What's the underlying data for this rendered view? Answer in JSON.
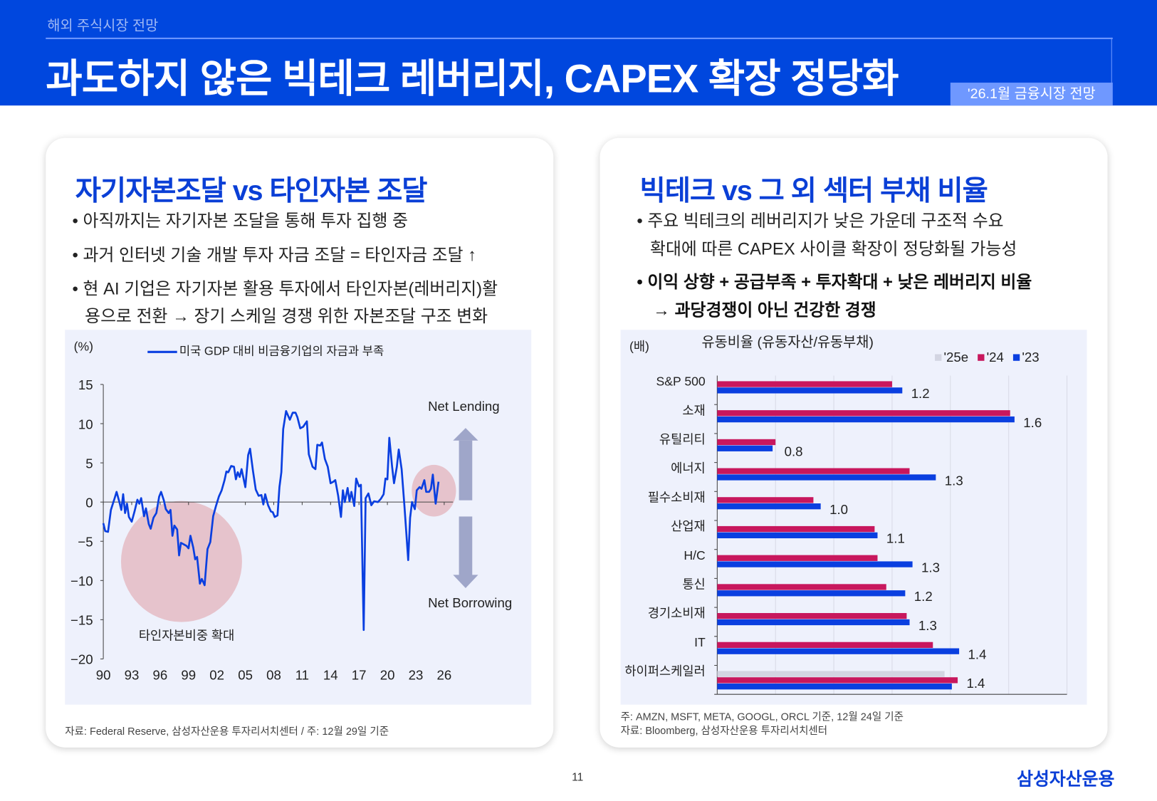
{
  "header": {
    "section": "해외 주식시장 전망",
    "title": "과도하지 않은 빅테크 레버리지, CAPEX 확장 정당화",
    "badge": "'26.1월 금융시장 전망"
  },
  "left": {
    "title": "자기자본조달 vs 타인자본 조달",
    "bullets": [
      "• 아직까지는 자기자본 조달을 통해 투자 집행 중",
      "• 과거 인터넷 기술 개발 투자 자금 조달 = 타인자금 조달 ↑",
      "• 현 AI 기업은 자기자본 활용 투자에서 타인자본(레버리지)활",
      "용으로 전환 → 장기 스케일 경쟁 위한 자본조달 구조 변화"
    ],
    "source": "자료: Federal Reserve, 삼성자산운용 투자리서치센터 / 주: 12월 29일 기준"
  },
  "right": {
    "title": "빅테크 vs 그 외 섹터 부채 비율",
    "bullets": [
      "• 주요 빅테크의 레버리지가 낮은 가운데 구조적 수요",
      "확대에 따른 CAPEX 사이클 확장이 정당화될 가능성",
      "• 이익 상향 + 공급부족 + 투자확대 + 낮은 레버리지 비율",
      "→ 과당경쟁이 아닌 건강한 경쟁"
    ],
    "note": "주: AMZN, MSFT, META, GOOGL, ORCL 기준, 12월 24일 기준",
    "source": "자료: Bloomberg, 삼성자산운용 투자리서치센터"
  },
  "footer": {
    "page": "11",
    "logo": "삼성자산운용"
  },
  "chart_data": [
    {
      "type": "line",
      "unit": "(%)",
      "legend": "미국 GDP 대비 비금융기업의 자금과 부족",
      "ylim": [
        -20,
        15
      ],
      "yticks": [
        15,
        10,
        5,
        0,
        -5,
        -10,
        -15,
        -20
      ],
      "xticks": [
        "90",
        "93",
        "96",
        "99",
        "02",
        "05",
        "08",
        "11",
        "14",
        "17",
        "20",
        "23",
        "26"
      ],
      "xlim": [
        1990,
        2026
      ],
      "annotations": {
        "net_lending": "Net Lending",
        "net_borrowing": "Net Borrowing",
        "circle_label": "타인자본비중 확대"
      },
      "color": "#0a3fe0",
      "points": [
        [
          1990.0,
          -2.7
        ],
        [
          1990.2,
          -3.7
        ],
        [
          1990.5,
          -3.8
        ],
        [
          1990.8,
          -1
        ],
        [
          1991.2,
          0.5
        ],
        [
          1991.4,
          1.3
        ],
        [
          1991.7,
          0
        ],
        [
          1991.9,
          -1
        ],
        [
          1992.1,
          1
        ],
        [
          1992.3,
          -1.4
        ],
        [
          1992.5,
          -0.2
        ],
        [
          1992.7,
          -1.9
        ],
        [
          1993.0,
          -2.5
        ],
        [
          1993.3,
          -1.2
        ],
        [
          1993.6,
          0.3
        ],
        [
          1993.8,
          -0.2
        ],
        [
          1994.0,
          0.5
        ],
        [
          1994.3,
          -1.8
        ],
        [
          1994.5,
          -0.8
        ],
        [
          1994.8,
          -2.8
        ],
        [
          1995.0,
          -3.4
        ],
        [
          1995.3,
          -2
        ],
        [
          1995.6,
          -1.4
        ],
        [
          1995.9,
          0.7
        ],
        [
          1996.1,
          1.3
        ],
        [
          1996.4,
          0.2
        ],
        [
          1996.6,
          -0.9
        ],
        [
          1996.9,
          -1.4
        ],
        [
          1997.1,
          -1.0
        ],
        [
          1997.3,
          -4.3
        ],
        [
          1997.5,
          -3
        ],
        [
          1997.8,
          -3.5
        ],
        [
          1998.0,
          -6.8
        ],
        [
          1998.2,
          -5.2
        ],
        [
          1998.5,
          -5.4
        ],
        [
          1998.8,
          -5.6
        ],
        [
          1999.0,
          -5.9
        ],
        [
          1999.2,
          -4.3
        ],
        [
          1999.5,
          -5.8
        ],
        [
          1999.7,
          -7.3
        ],
        [
          1999.9,
          -7.0
        ],
        [
          2000.2,
          -10.4
        ],
        [
          2000.4,
          -9.8
        ],
        [
          2000.7,
          -10.6
        ],
        [
          2001.0,
          -6.0
        ],
        [
          2001.3,
          -5.1
        ],
        [
          2001.6,
          -1.8
        ],
        [
          2001.9,
          -0.5
        ],
        [
          2002.2,
          0.7
        ],
        [
          2002.5,
          1.5
        ],
        [
          2002.8,
          2.8
        ],
        [
          2003.0,
          3.9
        ],
        [
          2003.2,
          3.8
        ],
        [
          2003.5,
          4.6
        ],
        [
          2003.8,
          4.5
        ],
        [
          2004.0,
          2.9
        ],
        [
          2004.2,
          3.8
        ],
        [
          2004.4,
          3.2
        ],
        [
          2004.6,
          4.2
        ],
        [
          2005.0,
          1.9
        ],
        [
          2005.3,
          6.0
        ],
        [
          2005.5,
          6.8
        ],
        [
          2005.8,
          4.0
        ],
        [
          2006.1,
          1.6
        ],
        [
          2006.4,
          0.8
        ],
        [
          2006.7,
          0.9
        ],
        [
          2006.9,
          -0.3
        ],
        [
          2007.1,
          1.0
        ],
        [
          2007.4,
          -0.4
        ],
        [
          2007.7,
          -1.2
        ],
        [
          2007.9,
          -1.3
        ],
        [
          2008.1,
          -1.9
        ],
        [
          2008.4,
          -1.7
        ],
        [
          2008.6,
          1.9
        ],
        [
          2008.8,
          3.8
        ],
        [
          2009.0,
          9.3
        ],
        [
          2009.3,
          11.6
        ],
        [
          2009.7,
          10.5
        ],
        [
          2010.0,
          11.4
        ],
        [
          2010.3,
          11.4
        ],
        [
          2010.5,
          10.8
        ],
        [
          2010.8,
          9.4
        ],
        [
          2011.1,
          9.6
        ],
        [
          2011.5,
          10.3
        ],
        [
          2011.7,
          6.1
        ],
        [
          2012.1,
          4.5
        ],
        [
          2012.4,
          4.2
        ],
        [
          2012.6,
          7.3
        ],
        [
          2012.9,
          7.2
        ],
        [
          2013.1,
          7.6
        ],
        [
          2013.4,
          5.5
        ],
        [
          2013.7,
          4.5
        ],
        [
          2014.0,
          2.4
        ],
        [
          2014.3,
          2.6
        ],
        [
          2014.5,
          2.8
        ],
        [
          2014.8,
          0.8
        ],
        [
          2015.1,
          -1.9
        ],
        [
          2015.3,
          1.5
        ],
        [
          2015.5,
          0
        ],
        [
          2015.8,
          1.8
        ],
        [
          2016.0,
          0.1
        ],
        [
          2016.2,
          1.3
        ],
        [
          2016.5,
          -0.5
        ],
        [
          2016.7,
          3.0
        ],
        [
          2017.0,
          2.0
        ],
        [
          2017.2,
          2.2
        ],
        [
          2017.5,
          -16.3
        ],
        [
          2017.7,
          0.5
        ],
        [
          2018.0,
          1.1
        ],
        [
          2018.3,
          -0.4
        ],
        [
          2018.6,
          0.1
        ],
        [
          2019.0,
          0
        ],
        [
          2019.3,
          0.4
        ],
        [
          2019.6,
          1.0
        ],
        [
          2019.8,
          3.0
        ],
        [
          2020.0,
          2.9
        ],
        [
          2020.2,
          8.2
        ],
        [
          2020.5,
          4.5
        ],
        [
          2020.7,
          2.4
        ],
        [
          2021.0,
          4.5
        ],
        [
          2021.2,
          6.7
        ],
        [
          2021.5,
          4.2
        ],
        [
          2021.8,
          -0.5
        ],
        [
          2022.0,
          -4
        ],
        [
          2022.2,
          -7.4
        ],
        [
          2022.4,
          -2.0
        ],
        [
          2022.6,
          0
        ],
        [
          2022.9,
          -0.9
        ],
        [
          2023.1,
          1.5
        ],
        [
          2023.4,
          1.9
        ],
        [
          2023.6,
          1.7
        ],
        [
          2023.9,
          2.8
        ],
        [
          2024.1,
          1.3
        ],
        [
          2024.4,
          1.3
        ],
        [
          2024.6,
          1.7
        ],
        [
          2024.8,
          3.5
        ],
        [
          2025.1,
          -0.2
        ],
        [
          2025.4,
          2.6
        ]
      ]
    },
    {
      "type": "bar",
      "orientation": "horizontal",
      "unit": "(배)",
      "title": "유동비율 (유동자산/유동부채)",
      "xlim": [
        0.6,
        1.8
      ],
      "xticks": [
        "0.6",
        "0.8",
        "1.0",
        "1.2",
        "1.4",
        "1.6",
        "1.8"
      ],
      "categories": [
        "S&P 500",
        "소재",
        "유틸리티",
        "에너지",
        "필수소비재",
        "산업재",
        "H/C",
        "통신",
        "경기소비재",
        "IT",
        "하이퍼스케일러"
      ],
      "series": [
        {
          "name": "'25e",
          "color": "#d3d5e2",
          "values": [
            null,
            null,
            null,
            null,
            null,
            null,
            null,
            null,
            null,
            null,
            1.38
          ]
        },
        {
          "name": "'24",
          "color": "#c8175d",
          "values": [
            1.2,
            1.605,
            0.8,
            1.26,
            0.93,
            1.14,
            1.15,
            1.18,
            1.25,
            1.34,
            1.425
          ]
        },
        {
          "name": "'23",
          "color": "#0a3fe0",
          "values": [
            1.235,
            1.62,
            0.79,
            1.35,
            0.955,
            1.15,
            1.27,
            1.245,
            1.26,
            1.43,
            1.405
          ]
        }
      ],
      "labels": [
        "1.2",
        "1.6",
        "0.8",
        "1.3",
        "1.0",
        "1.1",
        "1.3",
        "1.2",
        "1.3",
        "1.4",
        "1.4"
      ]
    }
  ]
}
